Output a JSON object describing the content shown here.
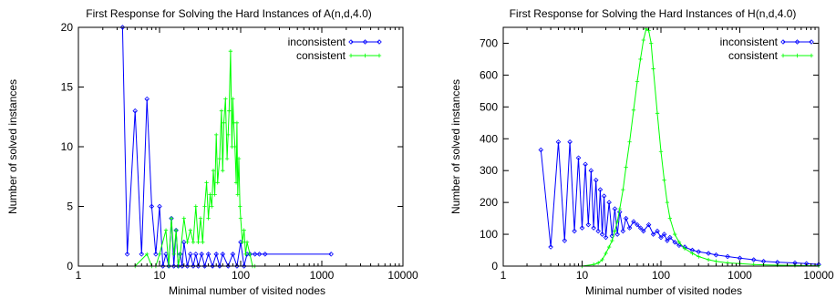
{
  "chart_data": [
    {
      "type": "line",
      "title": "First Response for Solving the Hard Instances of A(n,d,4.0)",
      "xlabel": "Minimal number of visited nodes",
      "ylabel": "Number of solved instances",
      "xscale": "log",
      "xlim": [
        1,
        10000
      ],
      "ylim": [
        0,
        20
      ],
      "xticks": [
        "1",
        "10",
        "100",
        "1000",
        "10000"
      ],
      "yticks": [
        "0",
        "5",
        "10",
        "15",
        "20"
      ],
      "legend_position": "top-right",
      "series": [
        {
          "name": "inconsistent",
          "color": "#0000ff",
          "marker": "diamond",
          "x": [
            3.5,
            4,
            5,
            6,
            7,
            8,
            9,
            10,
            11,
            12,
            13,
            14,
            15,
            16,
            17,
            18,
            19,
            20,
            22,
            24,
            26,
            28,
            30,
            33,
            36,
            40,
            45,
            50,
            55,
            60,
            70,
            80,
            90,
            100,
            110,
            120,
            130,
            150,
            170,
            200,
            1300
          ],
          "y": [
            20,
            1,
            13,
            1,
            14,
            5,
            1,
            5,
            0,
            1,
            0,
            4,
            0,
            3,
            0,
            1,
            0,
            2,
            0,
            1,
            0,
            1,
            0,
            1,
            0,
            1,
            0,
            1,
            0,
            1,
            0,
            1,
            0,
            2,
            0,
            1,
            1,
            1,
            1,
            1,
            1
          ]
        },
        {
          "name": "consistent",
          "color": "#00ff00",
          "marker": "plus",
          "x": [
            5,
            7,
            8,
            9,
            10,
            12,
            13,
            14,
            15,
            16,
            17,
            18,
            20,
            22,
            24,
            26,
            28,
            30,
            32,
            34,
            36,
            38,
            40,
            42,
            44,
            46,
            48,
            50,
            52,
            55,
            58,
            60,
            62,
            65,
            68,
            70,
            72,
            75,
            78,
            80,
            82,
            85,
            88,
            90,
            92,
            95,
            98,
            100,
            105,
            110,
            115,
            120,
            130,
            140,
            150
          ],
          "y": [
            0,
            1,
            0,
            0,
            1,
            3,
            0,
            4,
            1,
            3,
            0,
            1,
            4,
            2,
            3,
            2,
            5,
            2,
            4,
            2,
            5,
            7,
            4,
            6,
            5,
            8,
            6,
            11,
            7,
            9,
            13,
            8,
            12,
            14,
            9,
            11,
            13,
            18,
            10,
            14,
            12,
            10,
            7,
            12,
            6,
            9,
            5,
            4,
            2,
            3,
            1,
            2,
            1,
            0,
            0
          ]
        }
      ]
    },
    {
      "type": "line",
      "title": "First Response for Solving the Hard Instances of H(n,d,4.0)",
      "xlabel": "Minimal number of visited nodes",
      "ylabel": "Number of solved instances",
      "xscale": "log",
      "xlim": [
        1,
        10000
      ],
      "ylim": [
        0,
        750
      ],
      "xticks": [
        "1",
        "10",
        "100",
        "1000",
        "10000"
      ],
      "yticks": [
        "0",
        "100",
        "200",
        "300",
        "400",
        "500",
        "600",
        "700"
      ],
      "legend_position": "top-right",
      "series": [
        {
          "name": "inconsistent",
          "color": "#0000ff",
          "marker": "diamond",
          "x": [
            3,
            4,
            5,
            6,
            7,
            8,
            9,
            10,
            11,
            12,
            13,
            14,
            15,
            16,
            17,
            18,
            19,
            20,
            22,
            24,
            26,
            28,
            30,
            33,
            36,
            40,
            45,
            50,
            55,
            60,
            70,
            80,
            90,
            100,
            110,
            120,
            130,
            150,
            170,
            200,
            250,
            300,
            400,
            500,
            700,
            1000,
            1500,
            2000,
            3000,
            5000,
            7000,
            10000
          ],
          "y": [
            365,
            60,
            390,
            80,
            390,
            110,
            340,
            120,
            320,
            130,
            300,
            120,
            270,
            110,
            240,
            100,
            220,
            90,
            200,
            95,
            180,
            100,
            170,
            110,
            150,
            120,
            140,
            130,
            120,
            110,
            130,
            100,
            110,
            90,
            100,
            80,
            90,
            75,
            65,
            60,
            50,
            45,
            40,
            35,
            30,
            25,
            20,
            15,
            12,
            10,
            8,
            5
          ]
        },
        {
          "name": "consistent",
          "color": "#00ff00",
          "marker": "plus",
          "x": [
            10,
            14,
            16,
            18,
            20,
            22,
            24,
            26,
            28,
            30,
            33,
            36,
            40,
            45,
            50,
            55,
            60,
            65,
            70,
            75,
            80,
            90,
            100,
            110,
            120,
            130,
            150,
            170,
            200,
            250,
            300,
            400,
            500,
            700,
            1000,
            1500,
            2000,
            3000,
            5000,
            10000
          ],
          "y": [
            0,
            5,
            10,
            20,
            40,
            60,
            80,
            110,
            140,
            180,
            240,
            310,
            390,
            490,
            580,
            650,
            710,
            745,
            740,
            700,
            620,
            480,
            360,
            270,
            200,
            150,
            100,
            75,
            55,
            40,
            30,
            20,
            15,
            10,
            8,
            5,
            4,
            3,
            2,
            1
          ]
        }
      ]
    }
  ]
}
